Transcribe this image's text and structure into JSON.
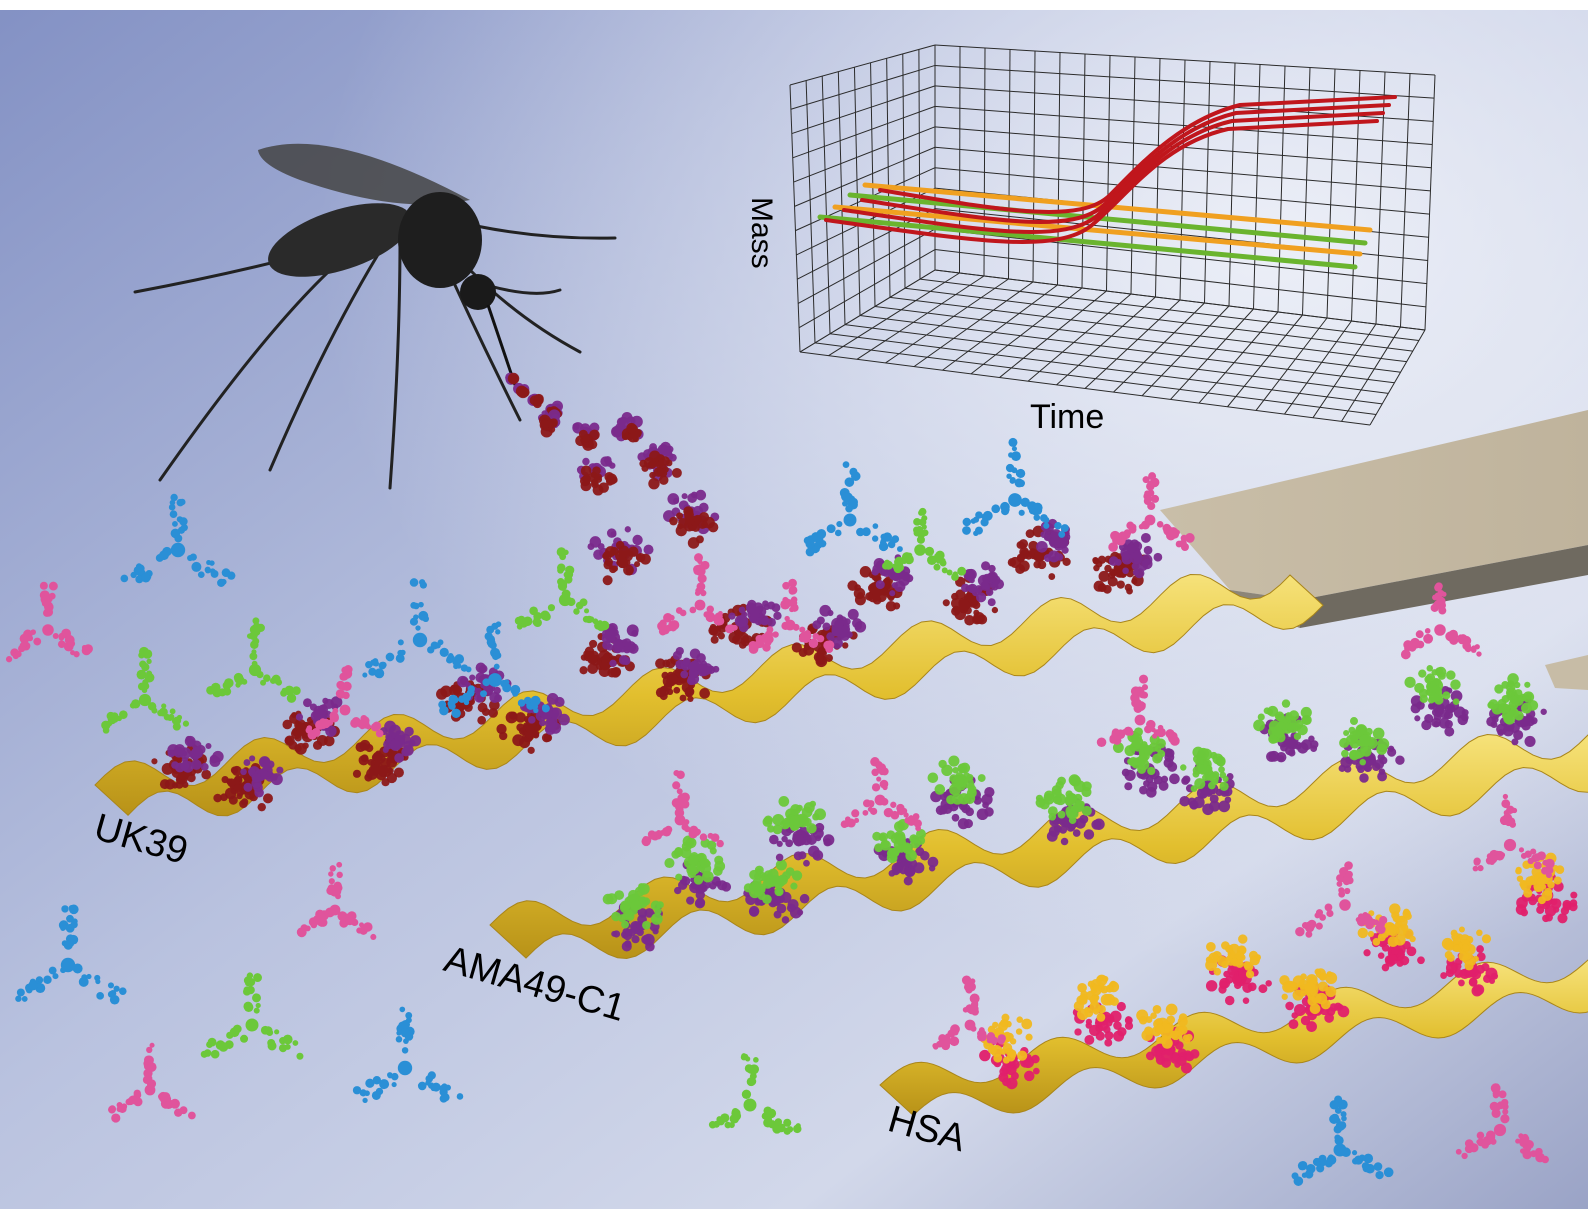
{
  "graph": {
    "x_label": "Time",
    "y_label": "Mass"
  },
  "strips": [
    {
      "label": "UK39"
    },
    {
      "label": "AMA49-C1"
    },
    {
      "label": "HSA"
    }
  ],
  "colors": {
    "background_top": "#8e9ccb",
    "background_bottom": "#d9deec",
    "gold_strip": "#e8c93b",
    "cantilever": "#c8b8a0",
    "curve_red": "#c0161c",
    "curve_orange": "#f0a020",
    "curve_green": "#6ab42e",
    "antibody_blue": "#2a8fd6",
    "antibody_pink": "#e0549c",
    "protein_purple": "#7a2a8c",
    "protein_red": "#8c1818",
    "protein_green": "#6cc83a",
    "protein_yellow": "#f0b820",
    "protein_magenta": "#e0206c"
  }
}
